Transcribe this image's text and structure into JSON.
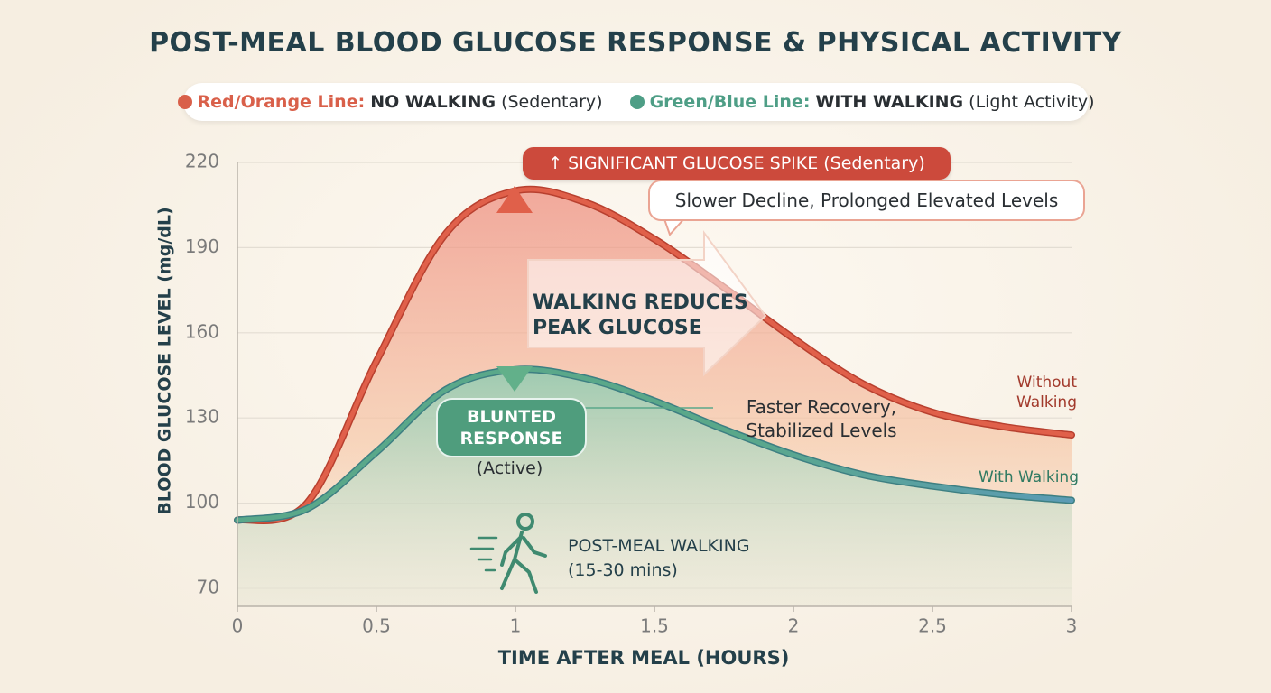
{
  "chart_data": {
    "type": "line",
    "title": "POST-MEAL BLOOD GLUCOSE RESPONSE & PHYSICAL ACTIVITY",
    "legend_items": [
      {
        "label": "Red/Orange Line:",
        "emphasis": "NO WALKING",
        "note": "(Sedentary)",
        "color": "#d9604a"
      },
      {
        "label": "Green/Blue Line:",
        "emphasis": "WITH WALKING",
        "note": "(Light Activity)",
        "color": "#4e9e86"
      }
    ],
    "x_label": "TIME AFTER MEAL (HOURS)",
    "y_label": "BLOOD GLUCOSE LEVEL (mg/dL)",
    "x": [
      0,
      0.25,
      0.5,
      0.75,
      1,
      1.25,
      1.5,
      1.75,
      2,
      2.25,
      2.5,
      2.75,
      3
    ],
    "series": [
      {
        "name": "Without Walking",
        "color": "#e0604a",
        "values": [
          94,
          100,
          150,
          195,
          210,
          206,
          193,
          176,
          158,
          142,
          132,
          127,
          124
        ]
      },
      {
        "name": "With Walking",
        "color": "#5aa88a",
        "values": [
          94,
          98,
          118,
          140,
          147,
          144,
          136,
          126,
          117,
          110,
          106,
          103,
          101
        ]
      }
    ],
    "xlim": [
      0,
      3
    ],
    "xticks": [
      0,
      0.5,
      1,
      1.5,
      2,
      2.5,
      3
    ],
    "ylim": [
      70,
      220
    ],
    "yticks": [
      70,
      100,
      130,
      160,
      190,
      220
    ],
    "grid": true,
    "annotations": {
      "spike": "↑ SIGNIFICANT GLUCOSE SPIKE (Sedentary)",
      "slower": "Slower Decline, Prolonged Elevated Levels",
      "reduces": "WALKING REDUCES PEAK GLUCOSE",
      "blunted": "BLUNTED RESPONSE",
      "active": "(Active)",
      "faster": "Faster Recovery, Stabilized Levels",
      "walking": "POST-MEAL WALKING",
      "duration": "(15-30 mins)"
    }
  }
}
